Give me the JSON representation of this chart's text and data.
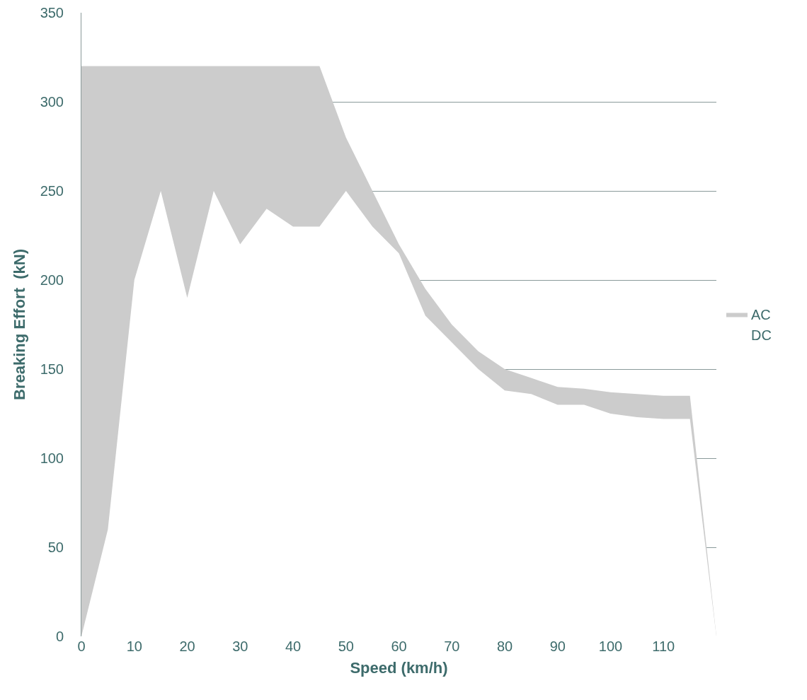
{
  "chart_data": {
    "type": "area",
    "xlabel": "Speed (km/h)",
    "ylabel": "Breaking Effort  (kN)",
    "x": [
      0,
      5,
      10,
      15,
      20,
      25,
      30,
      35,
      40,
      45,
      50,
      55,
      60,
      65,
      70,
      75,
      80,
      85,
      90,
      95,
      100,
      105,
      110,
      115,
      120
    ],
    "series": [
      {
        "name": "AC",
        "color": "#cccccc",
        "values": [
          320,
          320,
          320,
          320,
          320,
          320,
          320,
          320,
          320,
          320,
          280,
          250,
          220,
          195,
          175,
          160,
          150,
          145,
          140,
          139,
          137,
          136,
          135,
          135,
          0
        ]
      },
      {
        "name": "DC",
        "color": "#ffffff",
        "values": [
          0,
          60,
          200,
          250,
          190,
          250,
          220,
          240,
          230,
          230,
          250,
          230,
          215,
          180,
          165,
          150,
          138,
          136,
          130,
          130,
          125,
          123,
          122,
          122,
          0
        ]
      }
    ],
    "xlim": [
      0,
      120
    ],
    "xticks": [
      0,
      10,
      20,
      30,
      40,
      50,
      60,
      70,
      80,
      90,
      100,
      110
    ],
    "ylim": [
      0,
      350
    ],
    "yticks": [
      0,
      50,
      100,
      150,
      200,
      250,
      300,
      350
    ],
    "grid": "y",
    "legend": "right",
    "marker": "none"
  }
}
